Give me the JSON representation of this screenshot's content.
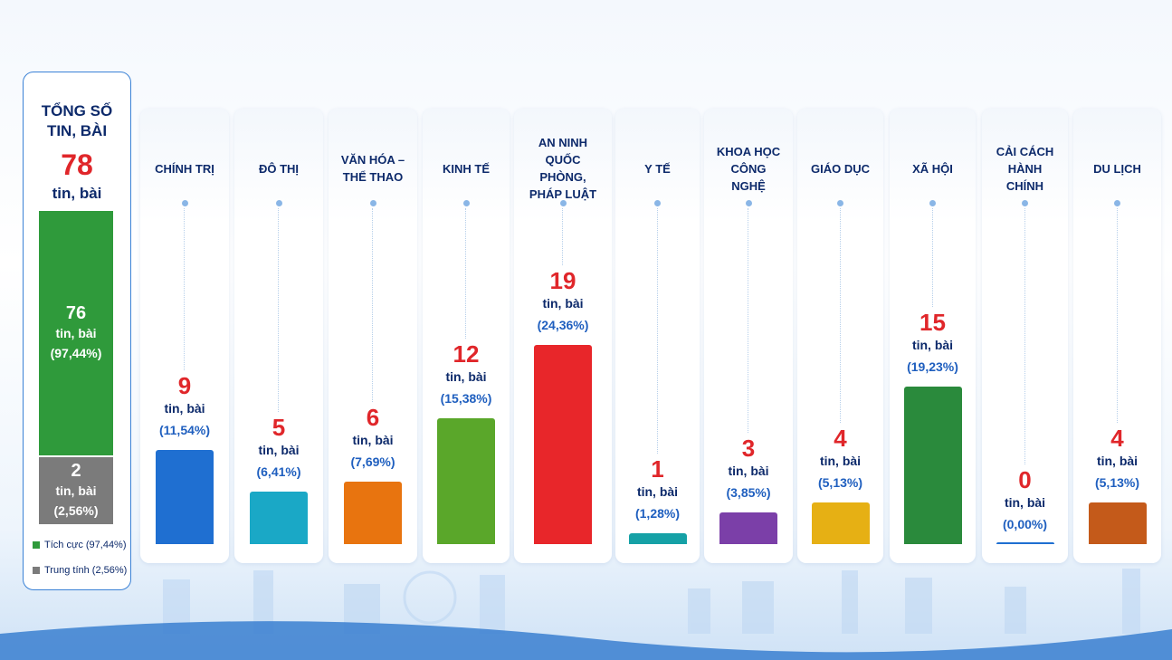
{
  "chart_data": [
    {
      "type": "stacked_bar",
      "title": "TỔNG SỐ TIN, BÀI",
      "total": 78,
      "unit": "tin, bài",
      "series": [
        {
          "name": "Tích cực (97,44%)",
          "color": "#2f9a3b",
          "values": [
            76
          ],
          "share_labels": [
            "(97,44%)"
          ]
        },
        {
          "name": "Trung tính (2,56%)",
          "color": "#7b7b7b",
          "values": [
            2
          ],
          "share_labels": [
            "(2,56%)"
          ]
        }
      ]
    },
    {
      "type": "bar",
      "unit": "tin, bài",
      "categories": [
        "CHÍNH TRỊ",
        "ĐÔ THỊ",
        "VĂN HÓA – THỂ THAO",
        "KINH TẾ",
        "AN NINH QUỐC PHÒNG, PHÁP LUẬT",
        "Y TẾ",
        "KHOA HỌC CÔNG NGHỆ",
        "GIÁO DỤC",
        "XÃ HỘI",
        "CẢI CÁCH HÀNH CHÍNH",
        "DU LỊCH"
      ],
      "values": [
        9,
        5,
        6,
        12,
        19,
        1,
        3,
        4,
        15,
        0,
        4
      ],
      "share_labels": [
        "(11,54%)",
        "(6,41%)",
        "(7,69%)",
        "(15,38%)",
        "(24,36%)",
        "(1,28%)",
        "(3,85%)",
        "(5,13%)",
        "(19,23%)",
        "(0,00%)",
        "(5,13%)"
      ],
      "colors": [
        "#1f6fd1",
        "#1aa8c6",
        "#e8740f",
        "#5aa72a",
        "#e8262a",
        "#15a1a6",
        "#7b3fa8",
        "#e6b014",
        "#2a8a3c",
        "#1f6fd1",
        "#c45a1a"
      ]
    }
  ]
}
